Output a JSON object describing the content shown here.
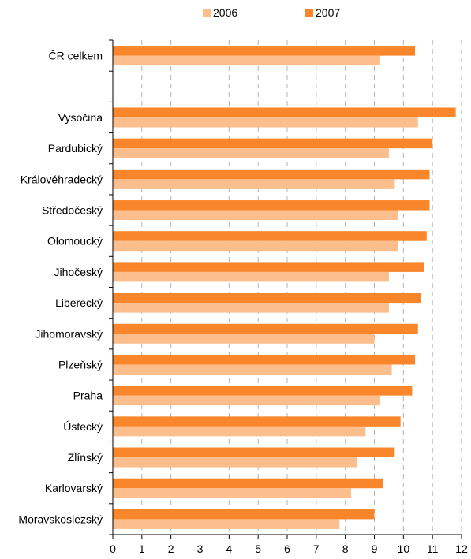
{
  "chart_data": {
    "type": "bar",
    "orientation": "horizontal",
    "title": "",
    "xlabel": "",
    "ylabel": "",
    "xlim": [
      0,
      12
    ],
    "x_ticks": [
      "0",
      "1",
      "2",
      "3",
      "4",
      "5",
      "6",
      "7",
      "8",
      "9",
      "10",
      "11",
      "12"
    ],
    "grid": "vertical dashed",
    "legend_position": "top",
    "categories": [
      "ČR celkem",
      "",
      "Vysočina",
      "Pardubický",
      "Královéhradecký",
      "Středočeský",
      "Olomoucký",
      "Jihočeský",
      "Liberecký",
      "Jihomoravský",
      "Plzeňský",
      "Praha",
      "Ústecký",
      "Zlínský",
      "Karlovarský",
      "Moravskoslezský"
    ],
    "series": [
      {
        "name": "2006",
        "color": "#FBBE8C",
        "values": [
          9.2,
          null,
          10.5,
          9.5,
          9.7,
          9.8,
          9.8,
          9.5,
          9.5,
          9.0,
          9.6,
          9.2,
          8.7,
          8.4,
          8.2,
          7.8
        ]
      },
      {
        "name": "2007",
        "color": "#F9862A",
        "values": [
          10.4,
          null,
          11.8,
          11.0,
          10.9,
          10.9,
          10.8,
          10.7,
          10.6,
          10.5,
          10.4,
          10.3,
          9.9,
          9.7,
          9.3,
          9.0
        ]
      }
    ]
  }
}
